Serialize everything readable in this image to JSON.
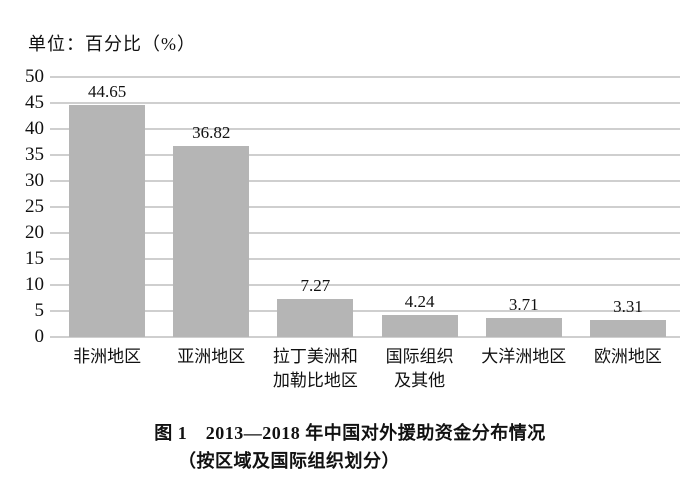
{
  "unit_label": "单位：百分比（%）",
  "caption": {
    "line1": "图 1　2013—2018 年中国对外援助资金分布情况",
    "line2": "（按区域及国际组织划分）"
  },
  "colors": {
    "bar": "#b5b5b5",
    "gridline": "#cfcfcf",
    "text": "#111111",
    "background": "#ffffff"
  },
  "chart_data": {
    "type": "bar",
    "title": "图 1　2013—2018 年中国对外援助资金分布情况（按区域及国际组织划分）",
    "unit_label": "单位：百分比（%）",
    "categories": [
      "非洲地区",
      "亚洲地区",
      "拉丁美洲和加勒比地区",
      "国际组织及其他",
      "大洋洲地区",
      "欧洲地区"
    ],
    "category_display": [
      "非洲地区",
      "亚洲地区",
      "拉丁美洲和\n加勒比地区",
      "国际组织\n及其他",
      "大洋洲地区",
      "欧洲地区"
    ],
    "values": [
      44.65,
      36.82,
      7.27,
      4.24,
      3.71,
      3.31
    ],
    "value_labels": [
      "44.65",
      "36.82",
      "7.27",
      "4.24",
      "3.71",
      "3.31"
    ],
    "ylabel": "",
    "xlabel": "",
    "ylim": [
      0,
      50
    ],
    "yticks": [
      0,
      5,
      10,
      15,
      20,
      25,
      30,
      35,
      40,
      45,
      50
    ],
    "grid": true,
    "legend": "none"
  }
}
